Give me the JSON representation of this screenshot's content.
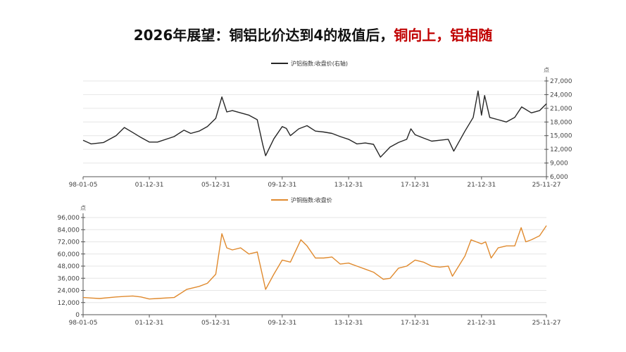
{
  "title": {
    "part1": "2026年展望：铜铝比价达到4的极值后，",
    "part2": "铜向上，铝相随"
  },
  "colors": {
    "aluminum_line": "#262626",
    "copper_line": "#e08a2e",
    "title_highlight": "#c00000",
    "grid": "#e6e6e6",
    "axis": "#555555"
  },
  "chart_data": [
    {
      "type": "line",
      "series": [
        {
          "name": "沪铝指数:收盘价(右轴)",
          "points": [
            [
              "1998-01-05",
              14000
            ],
            [
              "1998-06-30",
              13200
            ],
            [
              "1999-03-31",
              13500
            ],
            [
              "1999-12-31",
              15000
            ],
            [
              "2000-06-30",
              16800
            ],
            [
              "2000-12-31",
              15700
            ],
            [
              "2001-06-30",
              14600
            ],
            [
              "2001-12-31",
              13600
            ],
            [
              "2002-06-30",
              13600
            ],
            [
              "2003-06-30",
              14800
            ],
            [
              "2004-01-31",
              16200
            ],
            [
              "2004-06-30",
              15500
            ],
            [
              "2004-12-31",
              16000
            ],
            [
              "2005-06-30",
              17000
            ],
            [
              "2005-12-31",
              18800
            ],
            [
              "2006-05-15",
              23500
            ],
            [
              "2006-08-31",
              20200
            ],
            [
              "2006-12-31",
              20500
            ],
            [
              "2007-06-30",
              20000
            ],
            [
              "2007-12-31",
              19500
            ],
            [
              "2008-06-30",
              18500
            ],
            [
              "2008-10-31",
              13000
            ],
            [
              "2008-12-31",
              10600
            ],
            [
              "2009-06-30",
              14300
            ],
            [
              "2009-12-31",
              17000
            ],
            [
              "2010-03-31",
              16600
            ],
            [
              "2010-06-30",
              15000
            ],
            [
              "2010-12-31",
              16500
            ],
            [
              "2011-06-30",
              17200
            ],
            [
              "2011-12-31",
              16000
            ],
            [
              "2012-06-30",
              15800
            ],
            [
              "2012-12-31",
              15500
            ],
            [
              "2013-06-30",
              14800
            ],
            [
              "2013-12-31",
              14200
            ],
            [
              "2014-06-30",
              13200
            ],
            [
              "2014-12-31",
              13400
            ],
            [
              "2015-06-30",
              13100
            ],
            [
              "2015-11-30",
              10300
            ],
            [
              "2016-06-30",
              12500
            ],
            [
              "2016-12-31",
              13500
            ],
            [
              "2017-06-30",
              14200
            ],
            [
              "2017-09-30",
              16500
            ],
            [
              "2017-12-31",
              15200
            ],
            [
              "2018-06-30",
              14500
            ],
            [
              "2018-12-31",
              13800
            ],
            [
              "2019-06-30",
              14000
            ],
            [
              "2019-12-31",
              14200
            ],
            [
              "2020-04-30",
              11600
            ],
            [
              "2020-12-31",
              16000
            ],
            [
              "2021-06-30",
              19000
            ],
            [
              "2021-10-15",
              24800
            ],
            [
              "2021-12-31",
              19500
            ],
            [
              "2022-03-08",
              23800
            ],
            [
              "2022-06-30",
              19000
            ],
            [
              "2022-12-31",
              18500
            ],
            [
              "2023-06-30",
              18000
            ],
            [
              "2023-12-31",
              19000
            ],
            [
              "2024-05-31",
              21300
            ],
            [
              "2024-12-31",
              20000
            ],
            [
              "2025-06-30",
              20500
            ],
            [
              "2025-11-27",
              22000
            ]
          ]
        }
      ],
      "x_tick_labels": [
        "98-01-05",
        "01-12-31",
        "05-12-31",
        "09-12-31",
        "13-12-31",
        "17-12-31",
        "21-12-31",
        "25-11-27"
      ],
      "y_axis": {
        "side": "right",
        "unit": "点",
        "ylim": [
          6000,
          27000
        ],
        "tick_labels": [
          "6,000",
          "9,000",
          "12,000",
          "15,000",
          "18,000",
          "21,000",
          "24,000",
          "27,000"
        ]
      },
      "grid": true,
      "legend": "top-center"
    },
    {
      "type": "line",
      "series": [
        {
          "name": "沪铜指数:收盘价",
          "points": [
            [
              "1998-01-05",
              17000
            ],
            [
              "1998-12-31",
              16000
            ],
            [
              "1999-12-31",
              17500
            ],
            [
              "2000-06-30",
              18000
            ],
            [
              "2000-12-31",
              18500
            ],
            [
              "2001-06-30",
              17500
            ],
            [
              "2001-12-31",
              15500
            ],
            [
              "2002-06-30",
              16000
            ],
            [
              "2003-06-30",
              17000
            ],
            [
              "2004-03-31",
              25000
            ],
            [
              "2004-12-31",
              28000
            ],
            [
              "2005-06-30",
              31000
            ],
            [
              "2005-12-31",
              40000
            ],
            [
              "2006-05-15",
              80000
            ],
            [
              "2006-08-31",
              66000
            ],
            [
              "2006-12-31",
              64000
            ],
            [
              "2007-06-30",
              66000
            ],
            [
              "2007-12-31",
              60000
            ],
            [
              "2008-06-30",
              62000
            ],
            [
              "2008-12-31",
              25000
            ],
            [
              "2009-06-30",
              40000
            ],
            [
              "2009-12-31",
              54000
            ],
            [
              "2010-06-30",
              52000
            ],
            [
              "2011-02-15",
              74000
            ],
            [
              "2011-06-30",
              68000
            ],
            [
              "2011-12-31",
              56000
            ],
            [
              "2012-06-30",
              56000
            ],
            [
              "2012-12-31",
              57000
            ],
            [
              "2013-06-30",
              50000
            ],
            [
              "2013-12-31",
              51000
            ],
            [
              "2014-06-30",
              48000
            ],
            [
              "2014-12-31",
              45000
            ],
            [
              "2015-06-30",
              42000
            ],
            [
              "2016-01-31",
              35000
            ],
            [
              "2016-06-30",
              36000
            ],
            [
              "2016-12-31",
              46000
            ],
            [
              "2017-06-30",
              48000
            ],
            [
              "2017-12-31",
              54000
            ],
            [
              "2018-06-30",
              52000
            ],
            [
              "2018-12-31",
              48000
            ],
            [
              "2019-06-30",
              47000
            ],
            [
              "2019-12-31",
              48000
            ],
            [
              "2020-03-31",
              38000
            ],
            [
              "2020-12-31",
              58000
            ],
            [
              "2021-05-15",
              74000
            ],
            [
              "2021-12-31",
              70000
            ],
            [
              "2022-03-31",
              72000
            ],
            [
              "2022-07-31",
              56000
            ],
            [
              "2022-12-31",
              66000
            ],
            [
              "2023-06-30",
              68000
            ],
            [
              "2023-12-31",
              68000
            ],
            [
              "2024-05-20",
              86000
            ],
            [
              "2024-08-31",
              72000
            ],
            [
              "2024-12-31",
              74000
            ],
            [
              "2025-06-30",
              78000
            ],
            [
              "2025-11-27",
              88000
            ]
          ]
        }
      ],
      "x_tick_labels": [
        "98-01-05",
        "01-12-31",
        "05-12-31",
        "09-12-31",
        "13-12-31",
        "17-12-31",
        "21-12-31",
        "25-11-27"
      ],
      "y_axis": {
        "side": "left",
        "unit": "点",
        "ylim": [
          0,
          96000
        ],
        "tick_labels": [
          "0",
          "12,000",
          "24,000",
          "36,000",
          "48,000",
          "60,000",
          "72,000",
          "84,000",
          "96,000"
        ]
      },
      "grid": true,
      "legend": "top-center"
    }
  ]
}
